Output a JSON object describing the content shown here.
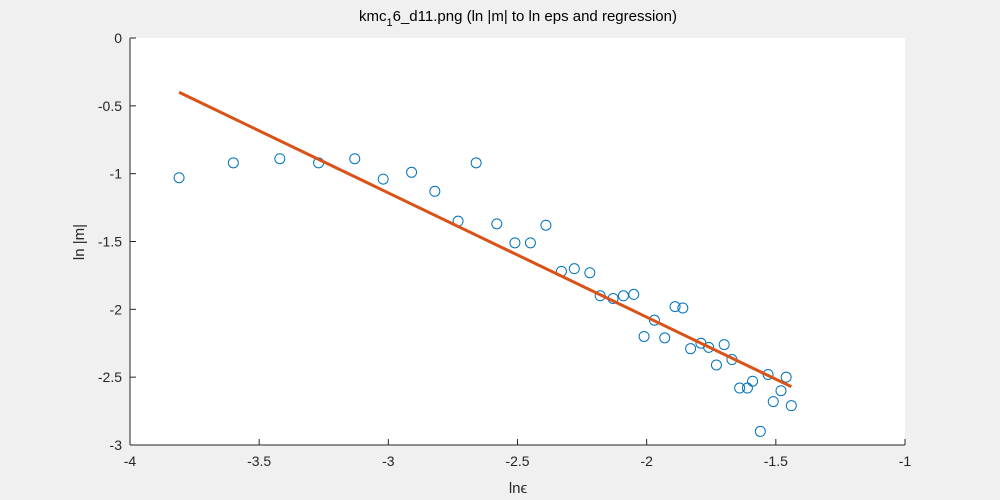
{
  "chart_data": {
    "type": "scatter",
    "title": {
      "prefix": "kmc",
      "subscript": "1",
      "suffix": "6_d11.png (ln |m| to ln eps and regression)"
    },
    "xlabel": "lnϵ",
    "ylabel": "ln |m|",
    "xlim": [
      -4,
      -1
    ],
    "ylim": [
      -3,
      0
    ],
    "xticks": [
      -4,
      -3.5,
      -3,
      -2.5,
      -2,
      -1.5,
      -1
    ],
    "xtick_labels": [
      "-4",
      "-3.5",
      "-3",
      "-2.5",
      "-2",
      "-1.5",
      "-1"
    ],
    "yticks": [
      0,
      -0.5,
      -1,
      -1.5,
      -2,
      -2.5,
      -3
    ],
    "ytick_labels": [
      "0",
      "-0.5",
      "-1",
      "-1.5",
      "-2",
      "-2.5",
      "-3"
    ],
    "grid": false,
    "series": [
      {
        "kind": "markers",
        "marker": "circle",
        "color": "#0072bd",
        "x": [
          -3.81,
          -3.6,
          -3.42,
          -3.27,
          -3.13,
          -3.02,
          -2.91,
          -2.82,
          -2.73,
          -2.66,
          -2.58,
          -2.51,
          -2.45,
          -2.39,
          -2.33,
          -2.28,
          -2.22,
          -2.18,
          -2.13,
          -2.09,
          -2.05,
          -2.01,
          -1.97,
          -1.93,
          -1.89,
          -1.86,
          -1.83,
          -1.79,
          -1.76,
          -1.73,
          -1.7,
          -1.67,
          -1.64,
          -1.61,
          -1.59,
          -1.56,
          -1.53,
          -1.51,
          -1.48,
          -1.46,
          -1.44
        ],
        "y": [
          -1.03,
          -0.92,
          -0.89,
          -0.92,
          -0.89,
          -1.04,
          -0.99,
          -1.13,
          -1.35,
          -0.92,
          -1.37,
          -1.51,
          -1.51,
          -1.38,
          -1.72,
          -1.7,
          -1.73,
          -1.9,
          -1.92,
          -1.9,
          -1.89,
          -2.2,
          -2.08,
          -2.21,
          -1.98,
          -1.99,
          -2.29,
          -2.25,
          -2.28,
          -2.41,
          -2.26,
          -2.37,
          -2.58,
          -2.58,
          -2.53,
          -2.9,
          -2.48,
          -2.68,
          -2.6,
          -2.5,
          -2.71
        ]
      },
      {
        "kind": "line",
        "color": "#d95319",
        "x": [
          -3.81,
          -1.44
        ],
        "y": [
          -0.4,
          -2.57
        ]
      }
    ]
  }
}
